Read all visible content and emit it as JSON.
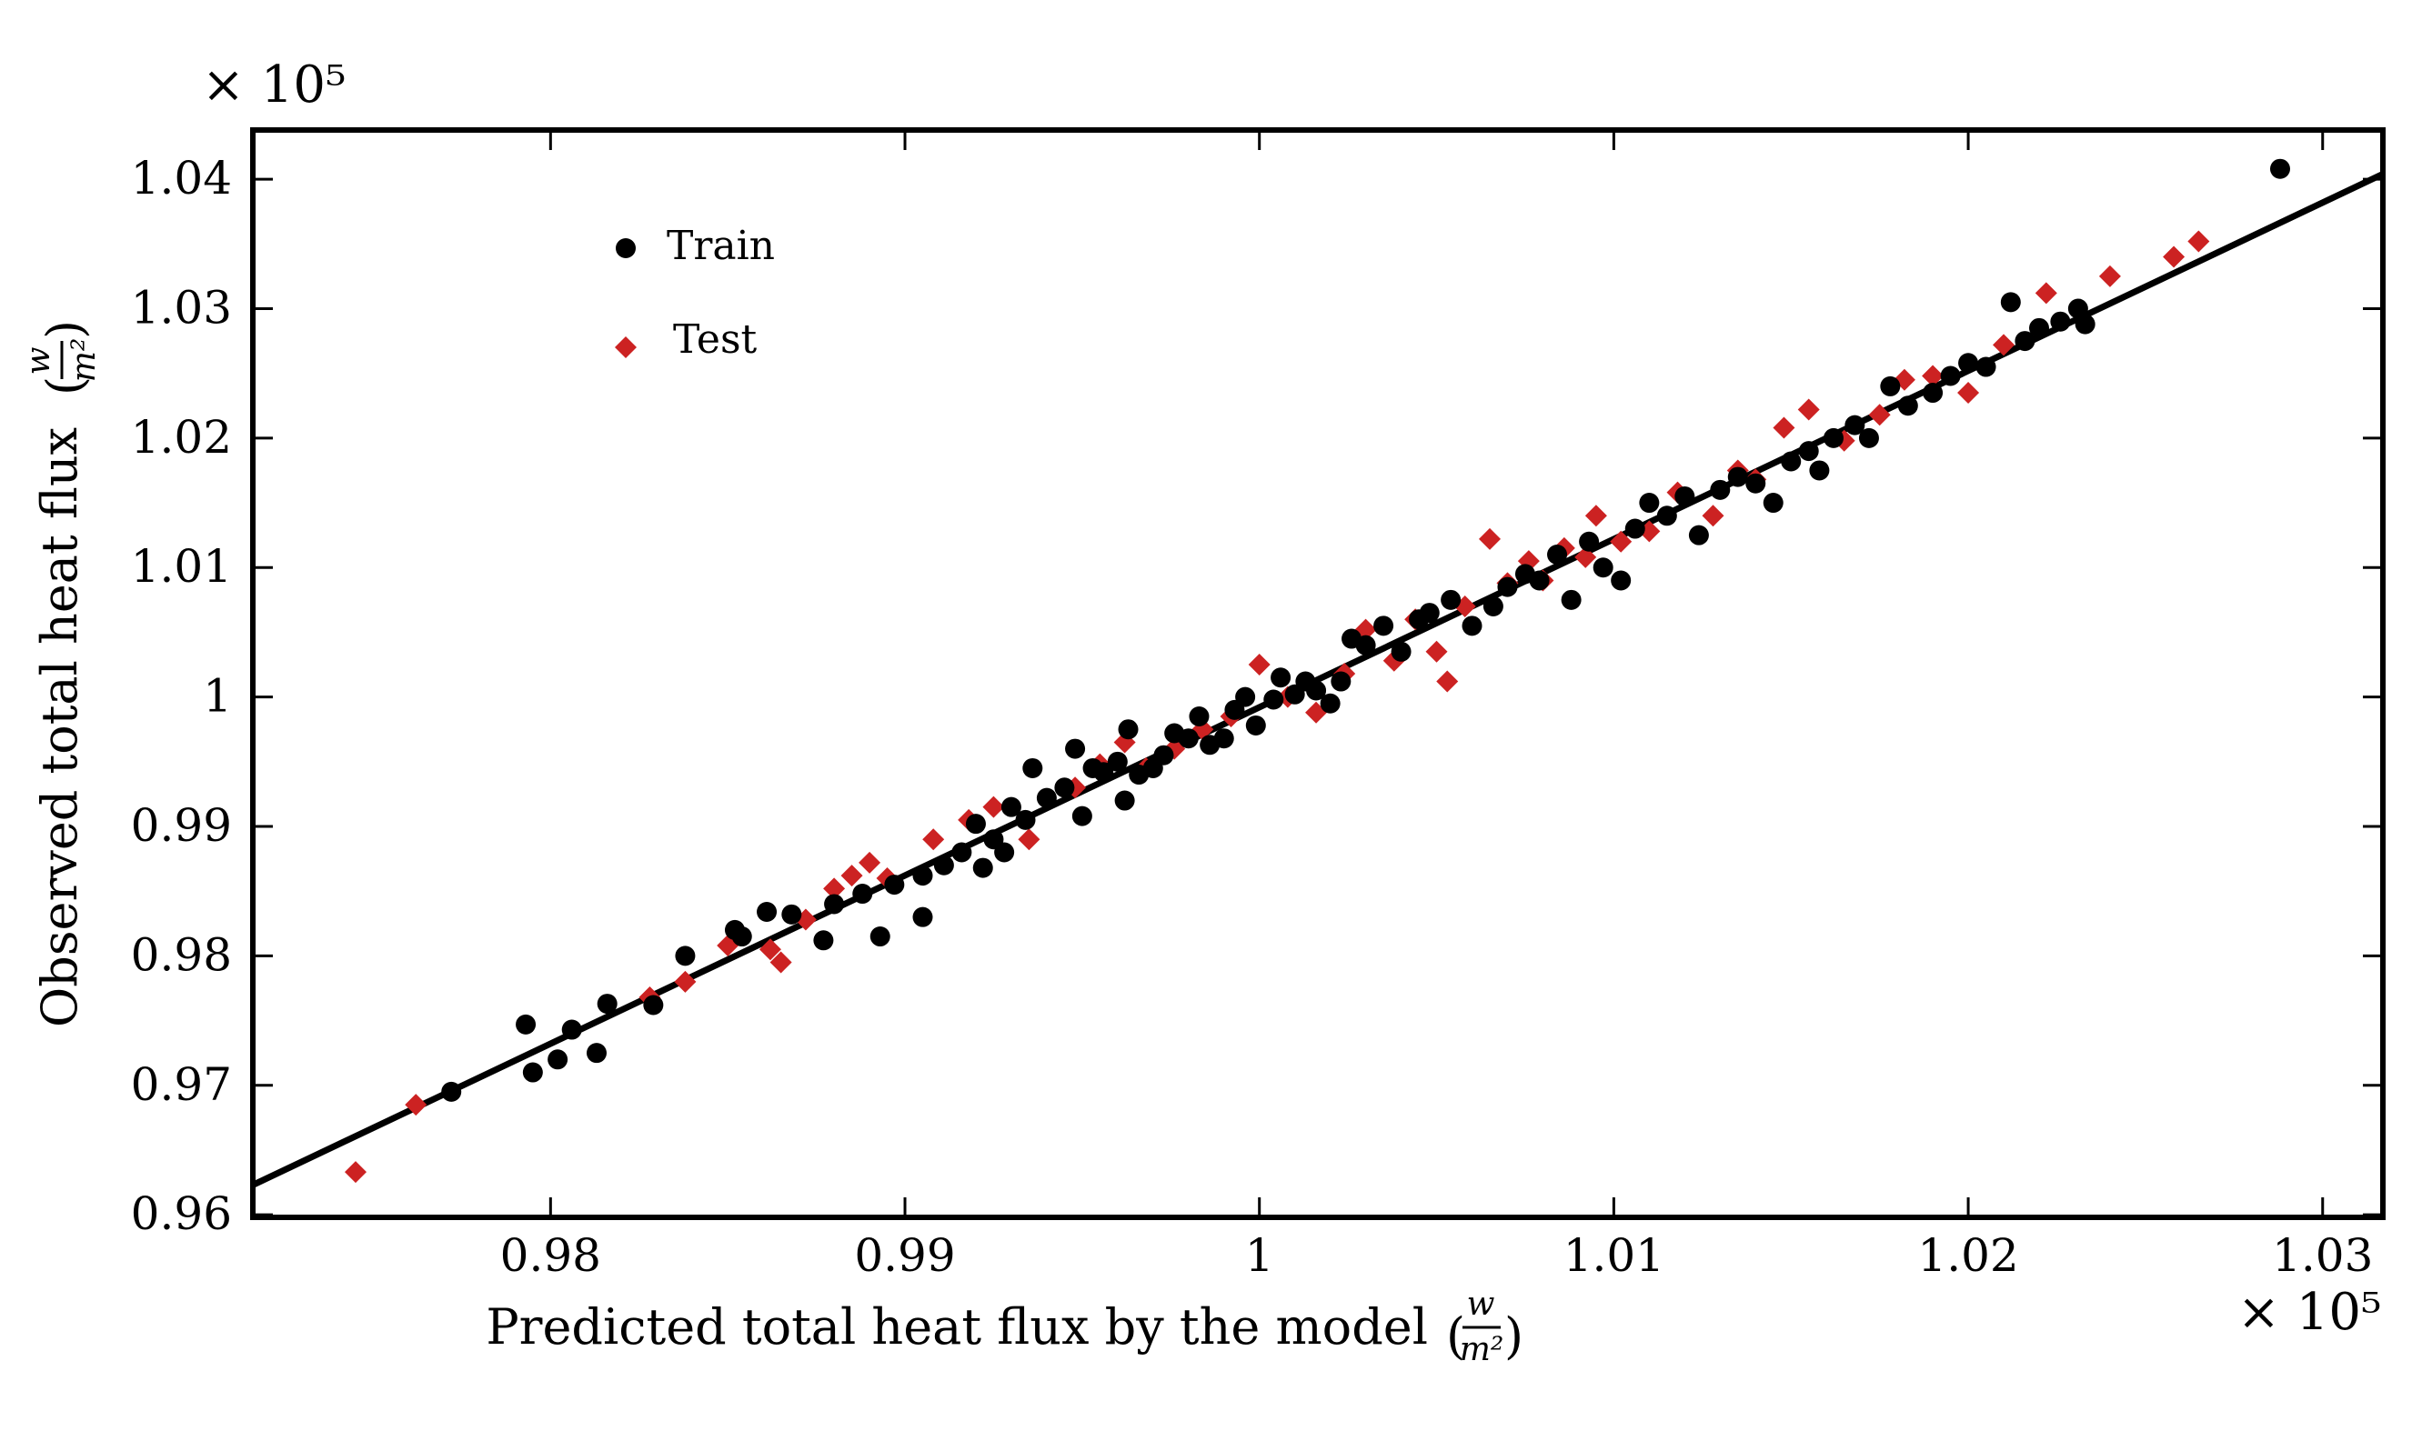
{
  "chart_data": {
    "type": "scatter",
    "title": "",
    "xlabel": "Predicted total heat flux by the model",
    "ylabel": "Observed total heat flux",
    "unit": {
      "numerator": "w",
      "denominator": "m²"
    },
    "x_multiplier": "× 10⁵",
    "y_multiplier": "× 10⁵",
    "xlim": [
      0.9716,
      1.0317
    ],
    "ylim": [
      0.9598,
      1.0438
    ],
    "x_ticks": [
      {
        "v": 0.98,
        "label": "0.98"
      },
      {
        "v": 0.99,
        "label": "0.99"
      },
      {
        "v": 1.0,
        "label": "1"
      },
      {
        "v": 1.01,
        "label": "1.01"
      },
      {
        "v": 1.02,
        "label": "1.02"
      },
      {
        "v": 1.03,
        "label": "1.03"
      }
    ],
    "y_ticks": [
      {
        "v": 0.96,
        "label": "0.96"
      },
      {
        "v": 0.97,
        "label": "0.97"
      },
      {
        "v": 0.98,
        "label": "0.98"
      },
      {
        "v": 0.99,
        "label": "0.99"
      },
      {
        "v": 1.0,
        "label": "1"
      },
      {
        "v": 1.01,
        "label": "1.01"
      },
      {
        "v": 1.02,
        "label": "1.02"
      },
      {
        "v": 1.03,
        "label": "1.03"
      },
      {
        "v": 1.04,
        "label": "1.04"
      }
    ],
    "grid": false,
    "legend_position": "top-left",
    "fit_line": {
      "x": [
        0.9716,
        1.0317
      ],
      "y": [
        0.9623,
        1.0404
      ],
      "color": "#000000"
    },
    "series": [
      {
        "name": "Train",
        "color": "#000000",
        "marker": "circle",
        "points": [
          [
            0.9772,
            0.9695
          ],
          [
            0.9793,
            0.9747
          ],
          [
            0.9795,
            0.971
          ],
          [
            0.9802,
            0.972
          ],
          [
            0.9806,
            0.9743
          ],
          [
            0.9813,
            0.9725
          ],
          [
            0.9816,
            0.9763
          ],
          [
            0.9829,
            0.9762
          ],
          [
            0.9838,
            0.98
          ],
          [
            0.9852,
            0.982
          ],
          [
            0.9854,
            0.9815
          ],
          [
            0.9861,
            0.9834
          ],
          [
            0.9868,
            0.9832
          ],
          [
            0.9877,
            0.9812
          ],
          [
            0.988,
            0.984
          ],
          [
            0.9888,
            0.9848
          ],
          [
            0.9893,
            0.9815
          ],
          [
            0.9897,
            0.9855
          ],
          [
            0.9905,
            0.9862
          ],
          [
            0.9905,
            0.983
          ],
          [
            0.9911,
            0.987
          ],
          [
            0.9916,
            0.988
          ],
          [
            0.992,
            0.9902
          ],
          [
            0.9922,
            0.9868
          ],
          [
            0.9925,
            0.989
          ],
          [
            0.9928,
            0.988
          ],
          [
            0.993,
            0.9915
          ],
          [
            0.9934,
            0.9905
          ],
          [
            0.9936,
            0.9945
          ],
          [
            0.994,
            0.9922
          ],
          [
            0.9945,
            0.993
          ],
          [
            0.9948,
            0.996
          ],
          [
            0.995,
            0.9908
          ],
          [
            0.9953,
            0.9945
          ],
          [
            0.9956,
            0.9942
          ],
          [
            0.996,
            0.995
          ],
          [
            0.9962,
            0.992
          ],
          [
            0.9963,
            0.9975
          ],
          [
            0.9966,
            0.994
          ],
          [
            0.997,
            0.9945
          ],
          [
            0.9973,
            0.9955
          ],
          [
            0.9976,
            0.9972
          ],
          [
            0.998,
            0.9968
          ],
          [
            0.9983,
            0.9985
          ],
          [
            0.9986,
            0.9963
          ],
          [
            0.999,
            0.9968
          ],
          [
            0.9993,
            0.999
          ],
          [
            0.9996,
            1.0
          ],
          [
            0.9999,
            0.9978
          ],
          [
            1.0004,
            0.9998
          ],
          [
            1.0006,
            1.0015
          ],
          [
            1.001,
            1.0002
          ],
          [
            1.0013,
            1.0012
          ],
          [
            1.0016,
            1.0005
          ],
          [
            1.002,
            0.9995
          ],
          [
            1.0023,
            1.0012
          ],
          [
            1.0026,
            1.0045
          ],
          [
            1.003,
            1.004
          ],
          [
            1.0035,
            1.0055
          ],
          [
            1.004,
            1.0035
          ],
          [
            1.0045,
            1.006
          ],
          [
            1.0048,
            1.0065
          ],
          [
            1.0054,
            1.0075
          ],
          [
            1.006,
            1.0055
          ],
          [
            1.0066,
            1.007
          ],
          [
            1.007,
            1.0085
          ],
          [
            1.0075,
            1.0095
          ],
          [
            1.0079,
            1.009
          ],
          [
            1.0084,
            1.011
          ],
          [
            1.0088,
            1.0075
          ],
          [
            1.0093,
            1.012
          ],
          [
            1.0097,
            1.01
          ],
          [
            1.0102,
            1.009
          ],
          [
            1.0106,
            1.013
          ],
          [
            1.011,
            1.015
          ],
          [
            1.0115,
            1.014
          ],
          [
            1.012,
            1.0155
          ],
          [
            1.0124,
            1.0125
          ],
          [
            1.013,
            1.016
          ],
          [
            1.0135,
            1.017
          ],
          [
            1.014,
            1.0165
          ],
          [
            1.0145,
            1.015
          ],
          [
            1.015,
            1.0182
          ],
          [
            1.0155,
            1.019
          ],
          [
            1.0158,
            1.0175
          ],
          [
            1.0162,
            1.02
          ],
          [
            1.0168,
            1.021
          ],
          [
            1.0172,
            1.02
          ],
          [
            1.0178,
            1.024
          ],
          [
            1.0183,
            1.0225
          ],
          [
            1.019,
            1.0235
          ],
          [
            1.0195,
            1.0248
          ],
          [
            1.02,
            1.0258
          ],
          [
            1.0205,
            1.0255
          ],
          [
            1.0212,
            1.0305
          ],
          [
            1.0216,
            1.0275
          ],
          [
            1.022,
            1.0285
          ],
          [
            1.0226,
            1.029
          ],
          [
            1.0231,
            1.03
          ],
          [
            1.0233,
            1.0288
          ],
          [
            1.0288,
            1.0408
          ]
        ]
      },
      {
        "name": "Test",
        "color": "#cc2222",
        "marker": "diamond",
        "points": [
          [
            0.9745,
            0.9633
          ],
          [
            0.9762,
            0.9685
          ],
          [
            0.9828,
            0.9768
          ],
          [
            0.9838,
            0.978
          ],
          [
            0.985,
            0.9808
          ],
          [
            0.9862,
            0.9805
          ],
          [
            0.9865,
            0.9795
          ],
          [
            0.9872,
            0.9828
          ],
          [
            0.988,
            0.9852
          ],
          [
            0.9885,
            0.9862
          ],
          [
            0.989,
            0.9872
          ],
          [
            0.9895,
            0.986
          ],
          [
            0.9908,
            0.989
          ],
          [
            0.9918,
            0.9905
          ],
          [
            0.9925,
            0.9915
          ],
          [
            0.9935,
            0.989
          ],
          [
            0.9948,
            0.993
          ],
          [
            0.9955,
            0.9948
          ],
          [
            0.9962,
            0.9965
          ],
          [
            0.9968,
            0.9945
          ],
          [
            0.9976,
            0.996
          ],
          [
            0.9984,
            0.9975
          ],
          [
            0.9992,
            0.9985
          ],
          [
            1.0,
            1.0025
          ],
          [
            1.0008,
            1.0
          ],
          [
            1.0016,
            0.9988
          ],
          [
            1.0024,
            1.0018
          ],
          [
            1.003,
            1.0052
          ],
          [
            1.0038,
            1.0028
          ],
          [
            1.0044,
            1.006
          ],
          [
            1.005,
            1.0035
          ],
          [
            1.0053,
            1.0012
          ],
          [
            1.0058,
            1.007
          ],
          [
            1.0065,
            1.0122
          ],
          [
            1.007,
            1.0088
          ],
          [
            1.0076,
            1.0105
          ],
          [
            1.008,
            1.009
          ],
          [
            1.0086,
            1.0115
          ],
          [
            1.0092,
            1.0108
          ],
          [
            1.0095,
            1.014
          ],
          [
            1.0102,
            1.012
          ],
          [
            1.011,
            1.0128
          ],
          [
            1.0118,
            1.0158
          ],
          [
            1.0128,
            1.014
          ],
          [
            1.0135,
            1.0175
          ],
          [
            1.014,
            1.0168
          ],
          [
            1.0148,
            1.0208
          ],
          [
            1.0155,
            1.0222
          ],
          [
            1.0165,
            1.0198
          ],
          [
            1.0175,
            1.0218
          ],
          [
            1.0182,
            1.0245
          ],
          [
            1.019,
            1.0248
          ],
          [
            1.02,
            1.0235
          ],
          [
            1.021,
            1.0272
          ],
          [
            1.0222,
            1.0312
          ],
          [
            1.024,
            1.0325
          ],
          [
            1.0258,
            1.034
          ],
          [
            1.0265,
            1.0352
          ]
        ]
      }
    ]
  }
}
